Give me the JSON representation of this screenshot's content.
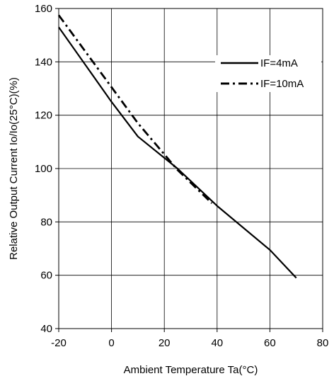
{
  "chart_data": {
    "type": "line",
    "xlabel": "Ambient Temperature Ta(°C)",
    "ylabel": "Relative Output Current Io/Io(25°C)(%)",
    "xlim": [
      -20,
      80
    ],
    "ylim": [
      40,
      160
    ],
    "xticks": [
      -20,
      0,
      20,
      40,
      60,
      80
    ],
    "yticks": [
      40,
      60,
      80,
      100,
      120,
      140,
      160
    ],
    "xtick_labels": [
      "-20",
      "0",
      "20",
      "40",
      "60",
      "80"
    ],
    "ytick_labels": [
      "40",
      "60",
      "80",
      "100",
      "120",
      "140",
      "160"
    ],
    "grid": true,
    "legend_position": "top-right",
    "series": [
      {
        "name": "IF=4mA",
        "style": "solid",
        "color": "#000000",
        "x": [
          -20,
          0,
          10,
          25,
          40,
          60,
          70
        ],
        "y": [
          153,
          125,
          112,
          100,
          86,
          69.5,
          59
        ]
      },
      {
        "name": "IF=10mA",
        "style": "dash-dot",
        "color": "#000000",
        "x": [
          -20,
          -10,
          0,
          10,
          25,
          38
        ],
        "y": [
          157.5,
          144,
          130.5,
          117,
          99.5,
          87
        ]
      }
    ]
  }
}
